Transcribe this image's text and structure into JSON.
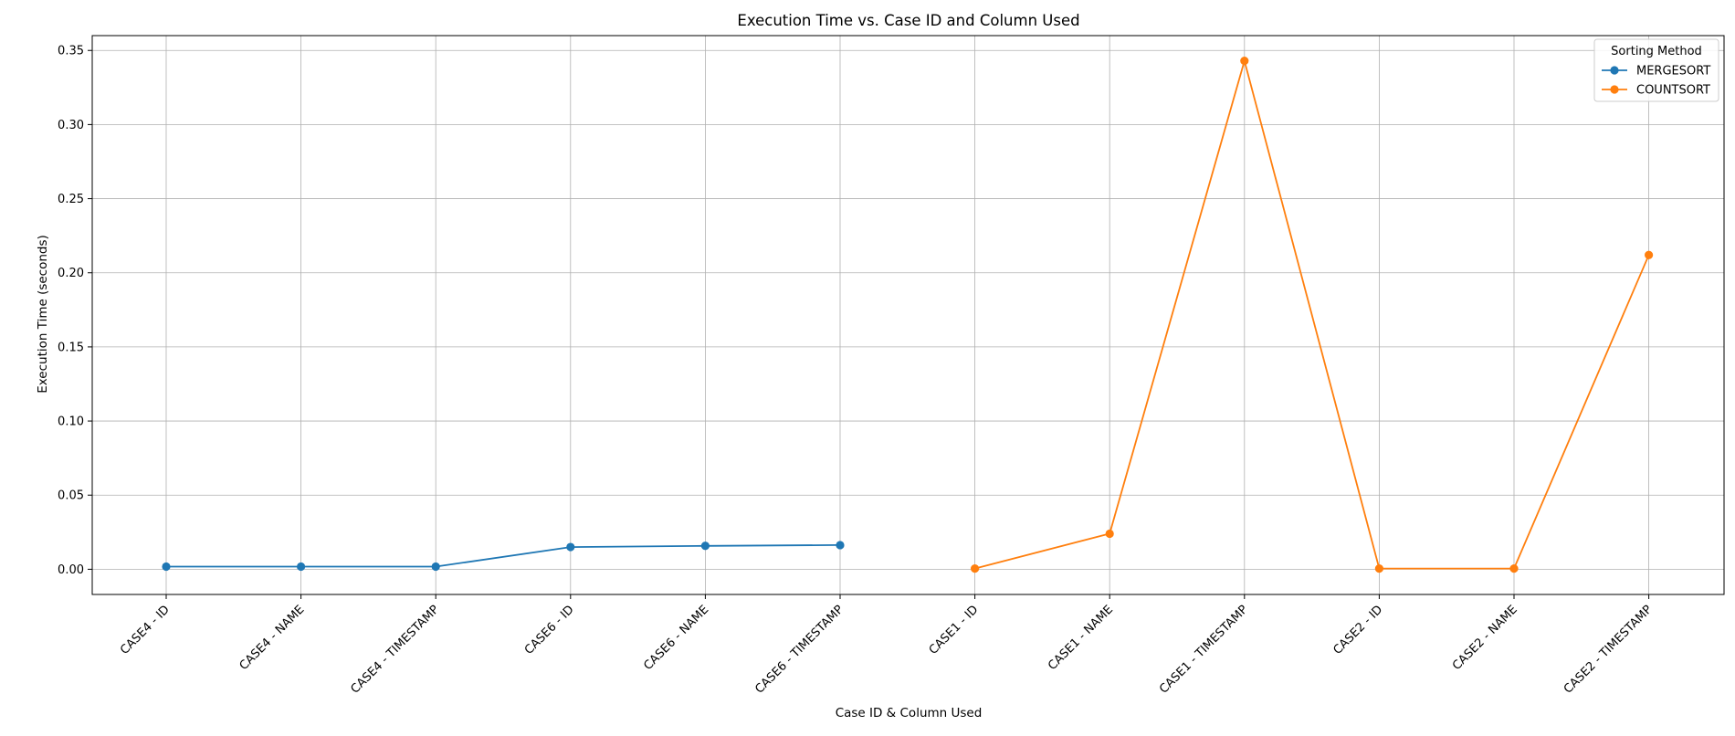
{
  "chart_data": {
    "type": "line",
    "title": "Execution Time vs. Case ID and Column Used",
    "xlabel": "Case ID & Column Used",
    "ylabel": "Execution Time (seconds)",
    "ylim": [
      -0.017,
      0.36
    ],
    "yticks": [
      0.0,
      0.05,
      0.1,
      0.15,
      0.2,
      0.25,
      0.3,
      0.35
    ],
    "ytick_labels": [
      "0.00",
      "0.05",
      "0.10",
      "0.15",
      "0.20",
      "0.25",
      "0.30",
      "0.35"
    ],
    "categories": [
      "CASE4 - ID",
      "CASE4 - NAME",
      "CASE4 - TIMESTAMP",
      "CASE6 - ID",
      "CASE6 - NAME",
      "CASE6 - TIMESTAMP",
      "CASE1 - ID",
      "CASE1 - NAME",
      "CASE1 - TIMESTAMP",
      "CASE2 - ID",
      "CASE2 - NAME",
      "CASE2 - TIMESTAMP"
    ],
    "grid": true,
    "legend": {
      "title": "Sorting Method",
      "placement": "top-right"
    },
    "series": [
      {
        "name": "MERGESORT",
        "color": "#1f77b4",
        "values": [
          0.0018,
          0.0018,
          0.0018,
          0.015,
          0.0158,
          0.0163,
          null,
          null,
          null,
          null,
          null,
          null
        ]
      },
      {
        "name": "COUNTSORT",
        "color": "#ff7f0e",
        "values": [
          null,
          null,
          null,
          null,
          null,
          null,
          0.0005,
          0.024,
          0.343,
          0.0005,
          0.0005,
          0.212
        ]
      }
    ]
  }
}
